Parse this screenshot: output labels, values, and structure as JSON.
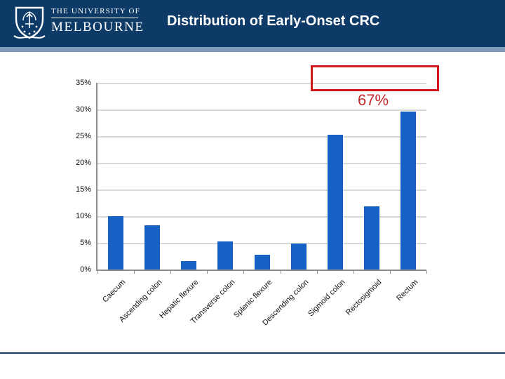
{
  "header": {
    "wordmark_line1": "THE UNIVERSITY OF",
    "wordmark_line2": "MELBOURNE",
    "slide_title": "Distribution of Early-Onset CRC",
    "bg_color": "#0d3a66",
    "stripe_color": "#7e9cba"
  },
  "annotation": {
    "text": "67%",
    "text_color": "#c2282c",
    "box_color": "#d01818"
  },
  "footer": {
    "line_color": "#17375e"
  },
  "chart_data": {
    "type": "bar",
    "title": "",
    "categories": [
      "Caecum",
      "Ascending colon",
      "Hepatic flexure",
      "Transverse colon",
      "Splenic flexure",
      "Descending colon",
      "Sigmoid colon",
      "Rectosigmoid",
      "Rectum"
    ],
    "values": [
      10.0,
      8.3,
      1.6,
      5.3,
      2.8,
      4.9,
      25.2,
      11.9,
      29.6
    ],
    "ytick_labels": [
      "0%",
      "5%",
      "10%",
      "15%",
      "20%",
      "25%",
      "30%",
      "35%"
    ],
    "ylim": [
      0,
      35
    ],
    "ytick_step": 5,
    "grid": "horizontal",
    "legend": "none",
    "bar_color": "#1561c4",
    "gridline_color": "#d9d9d9",
    "axis_color": "#8e8e8e",
    "distal_highlight_sum": "67%"
  }
}
